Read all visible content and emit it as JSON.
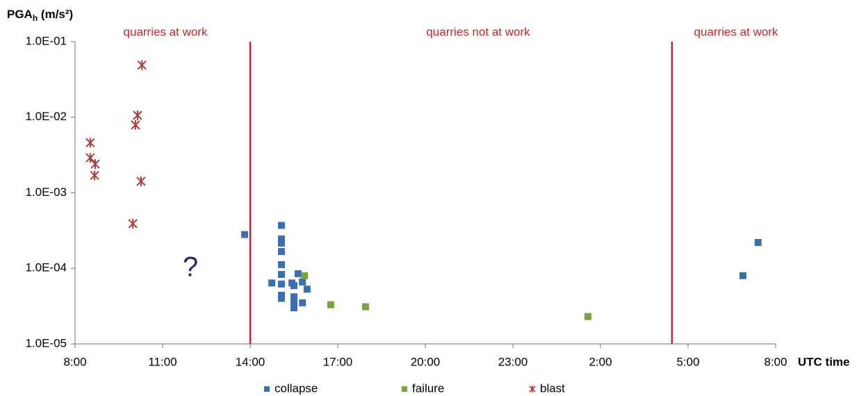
{
  "chart_data": {
    "type": "scatter",
    "y_label": {
      "main": "PGA",
      "sub": "h",
      "unit": " (m/s²)"
    },
    "x_label": "UTC time",
    "log_y": true,
    "xlim": [
      8,
      32
    ],
    "xticks": [
      {
        "value": 8,
        "label": "8:00"
      },
      {
        "value": 11,
        "label": "11:00"
      },
      {
        "value": 14,
        "label": "14:00"
      },
      {
        "value": 17,
        "label": "17:00"
      },
      {
        "value": 20,
        "label": "20:00"
      },
      {
        "value": 23,
        "label": "23:00"
      },
      {
        "value": 26,
        "label": "2:00"
      },
      {
        "value": 29,
        "label": "5:00"
      },
      {
        "value": 32,
        "label": "8:00"
      }
    ],
    "ylim": [
      1e-05,
      0.1
    ],
    "yticks": [
      {
        "value": 0.1,
        "label": "1.0E-01"
      },
      {
        "value": 0.01,
        "label": "1.0E-02"
      },
      {
        "value": 0.001,
        "label": "1.0E-03"
      },
      {
        "value": 0.0001,
        "label": "1.0E-04"
      },
      {
        "value": 1e-05,
        "label": "1.0E-05"
      }
    ],
    "legend": "bottom",
    "vlines": [
      {
        "x": 14,
        "color": "#c0272d"
      },
      {
        "x": 28.45,
        "color": "#c0272d"
      }
    ],
    "annotations": [
      {
        "text": "quarries at work",
        "color": "#c0272d"
      },
      {
        "text": "quarries not at work",
        "color": "#c0272d"
      },
      {
        "text": "quarries at work",
        "color": "#c0272d"
      },
      {
        "text": "?",
        "color": "#1f2a6b"
      }
    ],
    "series": [
      {
        "name": "collapse",
        "color": "#3b6fb0",
        "marker": "square",
        "x": [
          13.81,
          15.07,
          15.07,
          15.07,
          15.07,
          15.07,
          15.07,
          15.07,
          14.74,
          15.07,
          15.07,
          15.43,
          15.5,
          15.5,
          15.5,
          15.5,
          15.64,
          15.79,
          15.95,
          15.79,
          30.88,
          31.4
        ],
        "values": [
          0.00028,
          0.00037,
          0.000245,
          0.000215,
          0.000167,
          0.000112,
          8.3e-05,
          6.2e-05,
          6.4e-05,
          4.4e-05,
          4e-05,
          6.4e-05,
          5.9e-05,
          4.2e-05,
          3.5e-05,
          3e-05,
          8.5e-05,
          6.6e-05,
          5.3e-05,
          3.5e-05,
          8e-05,
          0.00022
        ]
      },
      {
        "name": "failure",
        "color": "#7ba23f",
        "marker": "square",
        "x": [
          15.86,
          16.76,
          17.95,
          25.57
        ],
        "values": [
          8e-05,
          3.3e-05,
          3.1e-05,
          2.3e-05
        ]
      },
      {
        "name": "blast",
        "color": "#b03a3a",
        "marker": "asterisk",
        "x": [
          8.52,
          8.52,
          8.69,
          8.67,
          9.98,
          10.07,
          10.14,
          10.29,
          10.26
        ],
        "values": [
          0.0046,
          0.0029,
          0.0024,
          0.0017,
          0.00039,
          0.0079,
          0.0106,
          0.049,
          0.00142
        ]
      }
    ]
  }
}
